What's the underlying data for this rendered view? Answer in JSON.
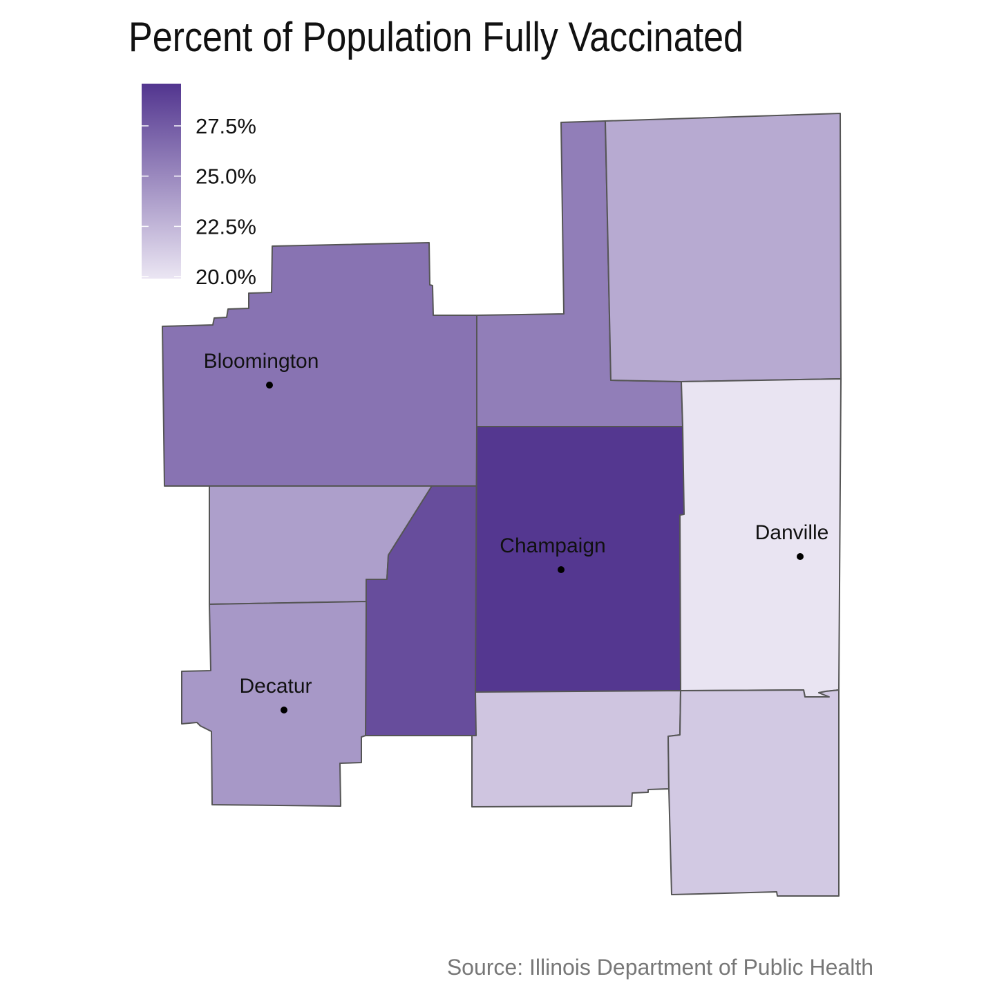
{
  "title": "Percent of Population Fully Vaccinated",
  "source": "Source: Illinois Department of Public Health",
  "colors": {
    "scale_low": "#ebe6f3",
    "scale_high": "#52358f",
    "border": "#555555",
    "text": "#111111",
    "source_text": "#777777"
  },
  "legend": {
    "min": 19.9,
    "max": 29.6,
    "ticks": [
      {
        "value": 27.5,
        "label": "27.5%"
      },
      {
        "value": 25.0,
        "label": "25.0%"
      },
      {
        "value": 22.5,
        "label": "22.5%"
      },
      {
        "value": 20.0,
        "label": "20.0%"
      }
    ]
  },
  "counties": [
    {
      "id": "mclean",
      "value": 26.2
    },
    {
      "id": "ford",
      "value": 25.6
    },
    {
      "id": "iroquois",
      "value": 23.2
    },
    {
      "id": "dewitt",
      "value": 23.8
    },
    {
      "id": "piatt",
      "value": 28.3
    },
    {
      "id": "champaign",
      "value": 29.5
    },
    {
      "id": "vermilion",
      "value": 20.0
    },
    {
      "id": "macon",
      "value": 24.2
    },
    {
      "id": "douglas",
      "value": 21.7
    },
    {
      "id": "edgar",
      "value": 21.5
    }
  ],
  "cities": [
    {
      "id": "bloomington",
      "label": "Bloomington"
    },
    {
      "id": "champaign",
      "label": "Champaign"
    },
    {
      "id": "danville",
      "label": "Danville"
    },
    {
      "id": "decatur",
      "label": "Decatur"
    }
  ]
}
